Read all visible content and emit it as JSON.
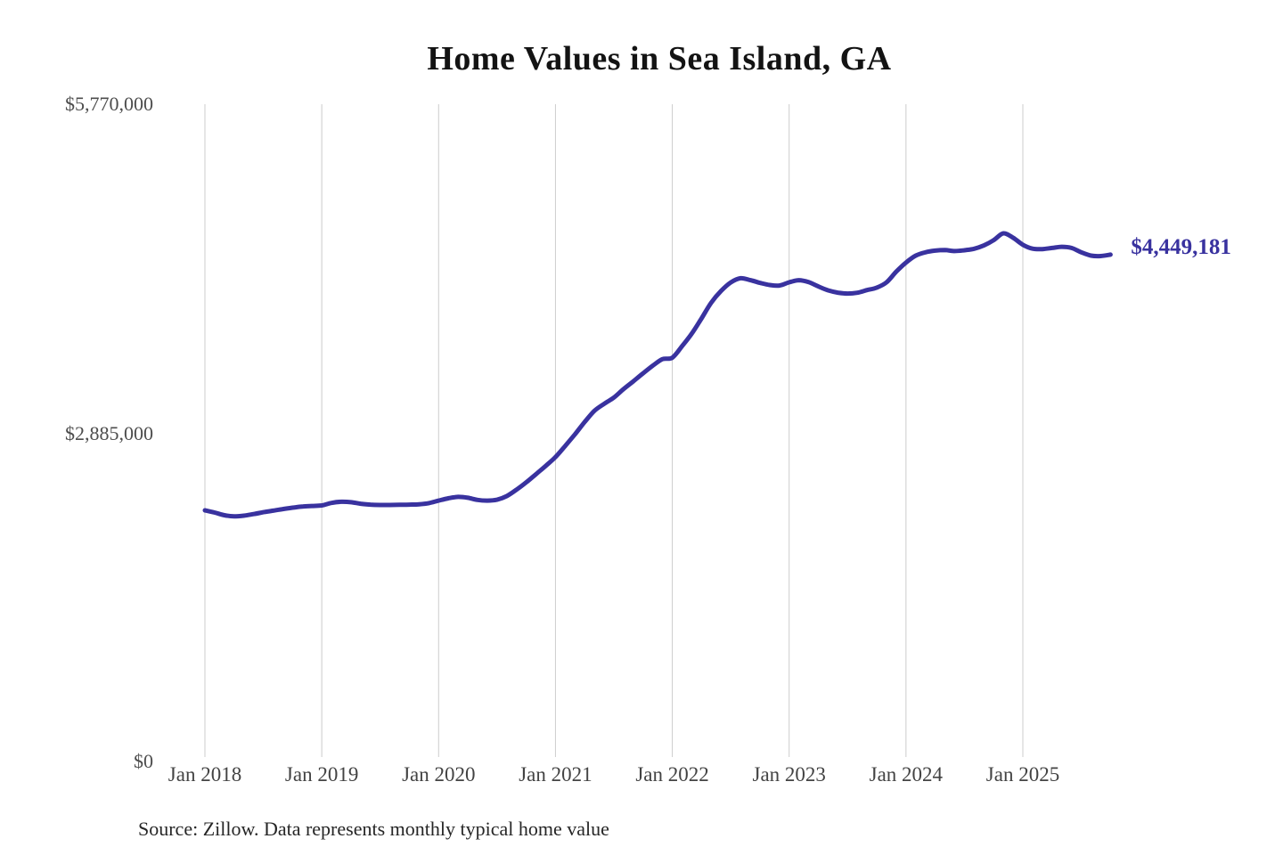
{
  "header": {
    "title": "Home Values in Sea Island, GA"
  },
  "chart_data": {
    "type": "line",
    "title": "Home Values in Sea Island, GA",
    "unit": "USD",
    "frequency": "monthly",
    "x_start": "2018-01",
    "x_end": "2025-10",
    "x": [
      "2018-01",
      "2018-02",
      "2018-03",
      "2018-04",
      "2018-05",
      "2018-06",
      "2018-07",
      "2018-08",
      "2018-09",
      "2018-10",
      "2018-11",
      "2018-12",
      "2019-01",
      "2019-02",
      "2019-03",
      "2019-04",
      "2019-05",
      "2019-06",
      "2019-07",
      "2019-08",
      "2019-09",
      "2019-10",
      "2019-11",
      "2019-12",
      "2020-01",
      "2020-02",
      "2020-03",
      "2020-04",
      "2020-05",
      "2020-06",
      "2020-07",
      "2020-08",
      "2020-09",
      "2020-10",
      "2020-11",
      "2020-12",
      "2021-01",
      "2021-02",
      "2021-03",
      "2021-04",
      "2021-05",
      "2021-06",
      "2021-07",
      "2021-08",
      "2021-09",
      "2021-10",
      "2021-11",
      "2021-12",
      "2022-01",
      "2022-02",
      "2022-03",
      "2022-04",
      "2022-05",
      "2022-06",
      "2022-07",
      "2022-08",
      "2022-09",
      "2022-10",
      "2022-11",
      "2022-12",
      "2023-01",
      "2023-02",
      "2023-03",
      "2023-04",
      "2023-05",
      "2023-06",
      "2023-07",
      "2023-08",
      "2023-09",
      "2023-10",
      "2023-11",
      "2023-12",
      "2024-01",
      "2024-02",
      "2024-03",
      "2024-04",
      "2024-05",
      "2024-06",
      "2024-07",
      "2024-08",
      "2024-09",
      "2024-10",
      "2024-11",
      "2024-12",
      "2025-01",
      "2025-02",
      "2025-03",
      "2025-04",
      "2025-05",
      "2025-06",
      "2025-07",
      "2025-08",
      "2025-09",
      "2025-10"
    ],
    "values": [
      2205000,
      2185000,
      2162000,
      2152000,
      2158000,
      2172000,
      2188000,
      2202000,
      2216000,
      2228000,
      2238000,
      2243000,
      2248000,
      2270000,
      2280000,
      2276000,
      2263000,
      2255000,
      2252000,
      2252000,
      2253000,
      2255000,
      2258000,
      2268000,
      2290000,
      2310000,
      2323000,
      2315000,
      2296000,
      2290000,
      2298000,
      2330000,
      2386000,
      2450000,
      2522000,
      2595000,
      2672000,
      2770000,
      2872000,
      2980000,
      3078000,
      3140000,
      3195000,
      3270000,
      3338000,
      3408000,
      3475000,
      3532000,
      3545000,
      3646000,
      3756000,
      3890000,
      4028000,
      4130000,
      4205000,
      4242000,
      4226000,
      4202000,
      4183000,
      4178000,
      4206000,
      4225000,
      4208000,
      4170000,
      4136000,
      4116000,
      4108000,
      4115000,
      4138000,
      4160000,
      4206000,
      4300000,
      4380000,
      4441000,
      4470000,
      4485000,
      4489000,
      4481000,
      4488000,
      4501000,
      4530000,
      4576000,
      4636000,
      4598000,
      4536000,
      4502000,
      4498000,
      4508000,
      4518000,
      4508000,
      4470000,
      4441000,
      4437000,
      4449181
    ],
    "x_tick_labels": [
      "Jan 2018",
      "Jan 2019",
      "Jan 2020",
      "Jan 2021",
      "Jan 2022",
      "Jan 2023",
      "Jan 2024",
      "Jan 2025"
    ],
    "y_ticks": [
      {
        "value": 0,
        "label": "$0"
      },
      {
        "value": 2885000,
        "label": "$2,885,000"
      },
      {
        "value": 5770000,
        "label": "$5,770,000"
      }
    ],
    "ylim": [
      0,
      5770000
    ],
    "grid": "vertical-only",
    "legend": "none",
    "line_color": "#39329f",
    "grid_color": "#cccccc",
    "last_value": 4449181,
    "last_value_label": "$4,449,181"
  },
  "footer": {
    "source": "Source: Zillow. Data represents monthly typical home value"
  }
}
